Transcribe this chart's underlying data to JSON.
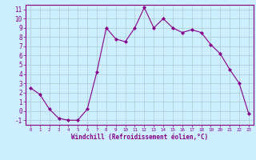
{
  "x": [
    0,
    1,
    2,
    3,
    4,
    5,
    6,
    7,
    8,
    9,
    10,
    11,
    12,
    13,
    14,
    15,
    16,
    17,
    18,
    19,
    20,
    21,
    22,
    23
  ],
  "y": [
    2.5,
    1.8,
    0.2,
    -0.8,
    -1.0,
    -1.0,
    0.2,
    4.2,
    9.0,
    7.8,
    7.5,
    9.0,
    11.2,
    9.0,
    10.0,
    9.0,
    8.5,
    8.8,
    8.5,
    7.2,
    6.2,
    4.5,
    3.0,
    -0.3
  ],
  "line_color": "#880088",
  "marker": "D",
  "marker_size": 2.0,
  "bg_color": "#cceeff",
  "grid_color": "#aacccc",
  "xlabel": "Windchill (Refroidissement éolien,°C)",
  "ylim": [
    -1.5,
    11.5
  ],
  "xlim": [
    -0.5,
    23.5
  ],
  "yticks": [
    -1,
    0,
    1,
    2,
    3,
    4,
    5,
    6,
    7,
    8,
    9,
    10,
    11
  ],
  "xticks": [
    0,
    1,
    2,
    3,
    4,
    5,
    6,
    7,
    8,
    9,
    10,
    11,
    12,
    13,
    14,
    15,
    16,
    17,
    18,
    19,
    20,
    21,
    22,
    23
  ],
  "axis_color": "#880088",
  "tick_color": "#880088",
  "xlabel_fontsize": 5.5,
  "xtick_fontsize": 4.2,
  "ytick_fontsize": 5.5
}
